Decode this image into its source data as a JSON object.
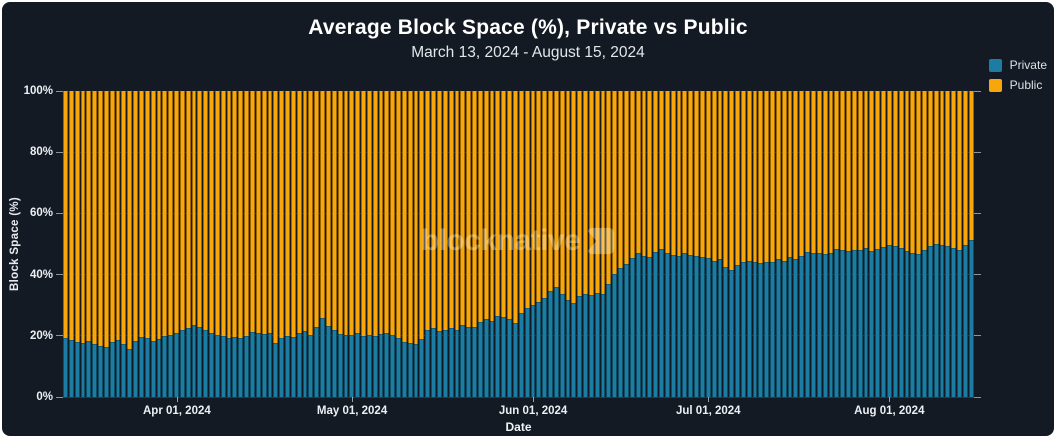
{
  "header": {
    "title": "Average Block Space (%), Private vs Public",
    "subtitle": "March 13, 2024 - August 15, 2024"
  },
  "watermark": {
    "text": "blocknative"
  },
  "axes": {
    "x_label": "Date",
    "y_label": "Block Space (%)"
  },
  "legend": {
    "position": "top-right",
    "items": [
      {
        "label": "Private",
        "color": "#1B7DA3"
      },
      {
        "label": "Public",
        "color": "#F8A60A"
      }
    ]
  },
  "colors": {
    "background": "#141A23",
    "frame": "#FFFFFF",
    "private": "#1B7DA3",
    "public": "#F8A60A",
    "grid": "rgba(255,255,255,0.13)",
    "text": "#ECEFF3"
  },
  "chart_data": {
    "type": "bar",
    "stacked": true,
    "normalized_to_100": true,
    "title": "Average Block Space (%), Private vs Public",
    "subtitle": "March 13, 2024 - August 15, 2024",
    "xlabel": "Date",
    "ylabel": "Block Space (%)",
    "ylim": [
      0,
      100
    ],
    "grid": "horizontal",
    "legend_position": "top-right",
    "x_start": "Mar 13, 2024",
    "x_end": "Aug 15, 2024",
    "bar_count": 156,
    "x_unit": "day",
    "yticks": [
      {
        "label": "0%",
        "value": 0
      },
      {
        "label": "20%",
        "value": 20
      },
      {
        "label": "40%",
        "value": 40
      },
      {
        "label": "60%",
        "value": 60
      },
      {
        "label": "80%",
        "value": 80
      },
      {
        "label": "100%",
        "value": 100
      }
    ],
    "xticks": [
      {
        "label": "Apr 01, 2024",
        "index": 19
      },
      {
        "label": "May 01, 2024",
        "index": 49
      },
      {
        "label": "Jun 01, 2024",
        "index": 80
      },
      {
        "label": "Jul 01, 2024",
        "index": 110
      },
      {
        "label": "Aug 01, 2024",
        "index": 141
      }
    ],
    "series": [
      {
        "name": "Private",
        "color": "#1B7DA3",
        "values": [
          19.2,
          18.6,
          18.0,
          17.6,
          18.2,
          17.2,
          16.6,
          16.2,
          18.0,
          18.6,
          17.2,
          15.8,
          18.4,
          19.6,
          19.2,
          18.4,
          18.8,
          19.8,
          20.4,
          21.0,
          22.0,
          22.6,
          23.4,
          22.8,
          22.0,
          21.0,
          20.2,
          19.8,
          19.4,
          19.6,
          19.2,
          19.8,
          21.4,
          21.0,
          20.6,
          21.0,
          17.6,
          19.2,
          20.0,
          19.6,
          21.0,
          21.6,
          20.2,
          23.0,
          25.8,
          23.2,
          21.8,
          20.6,
          20.2,
          20.4,
          21.0,
          19.8,
          20.2,
          19.8,
          20.6,
          21.0,
          20.4,
          19.2,
          18.0,
          17.6,
          17.2,
          19.0,
          22.0,
          22.6,
          21.6,
          22.0,
          22.4,
          22.0,
          23.6,
          23.0,
          22.8,
          24.6,
          25.6,
          25.0,
          26.6,
          26.0,
          25.4,
          24.2,
          27.6,
          29.2,
          30.2,
          31.2,
          32.4,
          34.6,
          36.0,
          33.6,
          31.6,
          30.8,
          33.0,
          33.6,
          33.4,
          34.0,
          33.8,
          37.0,
          40.2,
          42.0,
          43.6,
          45.4,
          47.0,
          46.0,
          45.6,
          47.4,
          48.4,
          47.0,
          46.4,
          46.0,
          47.0,
          46.4,
          46.0,
          45.8,
          45.4,
          44.6,
          45.0,
          42.6,
          41.6,
          43.0,
          44.0,
          44.6,
          44.0,
          43.8,
          44.2,
          44.0,
          45.0,
          44.6,
          45.6,
          45.0,
          46.0,
          47.4,
          47.0,
          47.2,
          46.8,
          47.0,
          48.4,
          48.0,
          47.6,
          48.2,
          48.0,
          48.6,
          47.8,
          48.4,
          49.0,
          49.6,
          49.2,
          48.8,
          47.6,
          47.0,
          46.8,
          48.0,
          49.4,
          50.0,
          49.8,
          49.4,
          48.6,
          48.0,
          49.8,
          51.2
        ]
      },
      {
        "name": "Public",
        "color": "#F8A60A",
        "rule": "100 - Private"
      }
    ],
    "note": "100% stacked daily bars from Mar 13, 2024 to Aug 15, 2024; Public share = 100 minus Private share for each day."
  }
}
